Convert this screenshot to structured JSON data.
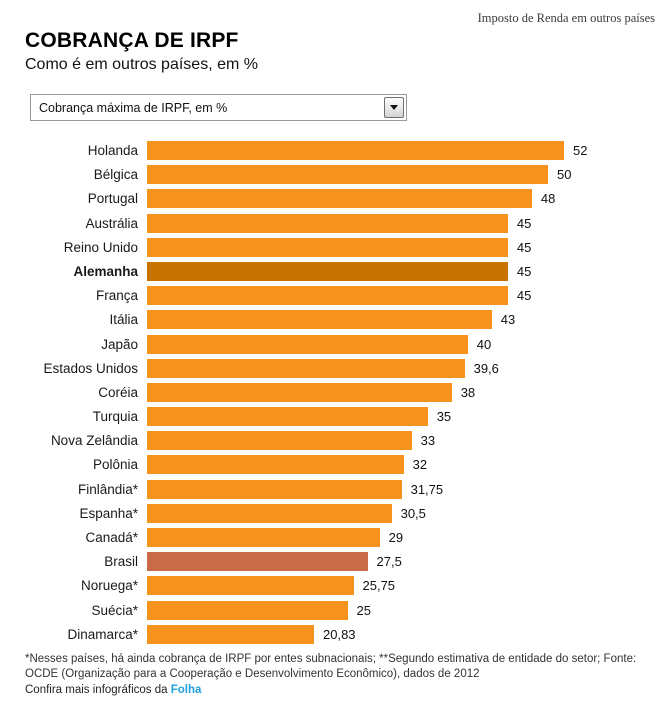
{
  "page": {
    "kicker": "Imposto de Renda em outros países",
    "title": "COBRANÇA DE IRPF",
    "subtitle": "Como é em outros países, em %"
  },
  "dropdown": {
    "selected": "Cobrança máxima de IRPF, em %"
  },
  "chart_data": {
    "type": "bar",
    "orientation": "horizontal",
    "title": "COBRANÇA DE IRPF",
    "subtitle": "Como é em outros países, em %",
    "xlim": [
      0,
      52
    ],
    "grid": false,
    "legend": false,
    "bar_color": "#F6931D",
    "categories": [
      "Holanda",
      "Bélgica",
      "Portugal",
      "Austrália",
      "Reino Unido",
      "Alemanha",
      "França",
      "Itália",
      "Japão",
      "Estados Unidos",
      "Coréia",
      "Turquia",
      "Nova Zelândia",
      "Polônia",
      "Finlândia*",
      "Espanha*",
      "Canadá*",
      "Brasil",
      "Noruega*",
      "Suécia*",
      "Dinamarca*"
    ],
    "values": [
      52,
      50,
      48,
      45,
      45,
      45,
      45,
      43,
      40,
      39.6,
      38,
      35,
      33,
      32,
      31.75,
      30.5,
      29,
      27.5,
      25.75,
      25,
      20.83
    ],
    "value_labels": [
      "52",
      "50",
      "48",
      "45",
      "45",
      "45",
      "45",
      "43",
      "40",
      "39,6",
      "38",
      "35",
      "33",
      "32",
      "31,75",
      "30,5",
      "29",
      "27,5",
      "25,75",
      "25",
      "20,83"
    ],
    "emphasis": [
      {
        "category": "Alemanha",
        "color": "#C87200",
        "bold_label": true
      },
      {
        "category": "Brasil",
        "color": "#C96B48",
        "bold_label": false
      }
    ]
  },
  "footer": {
    "note": "*Nesses países, há ainda cobrança de IRPF por entes subnacionais; **Segundo estimativa de entidade do setor; Fonte: OCDE (Organização para a Cooperação e Desenvolvimento Econômico), dados de 2012",
    "more_prefix": "Confira mais infográficos da ",
    "link_label": "Folha",
    "link_color": "#1EA0DC"
  }
}
